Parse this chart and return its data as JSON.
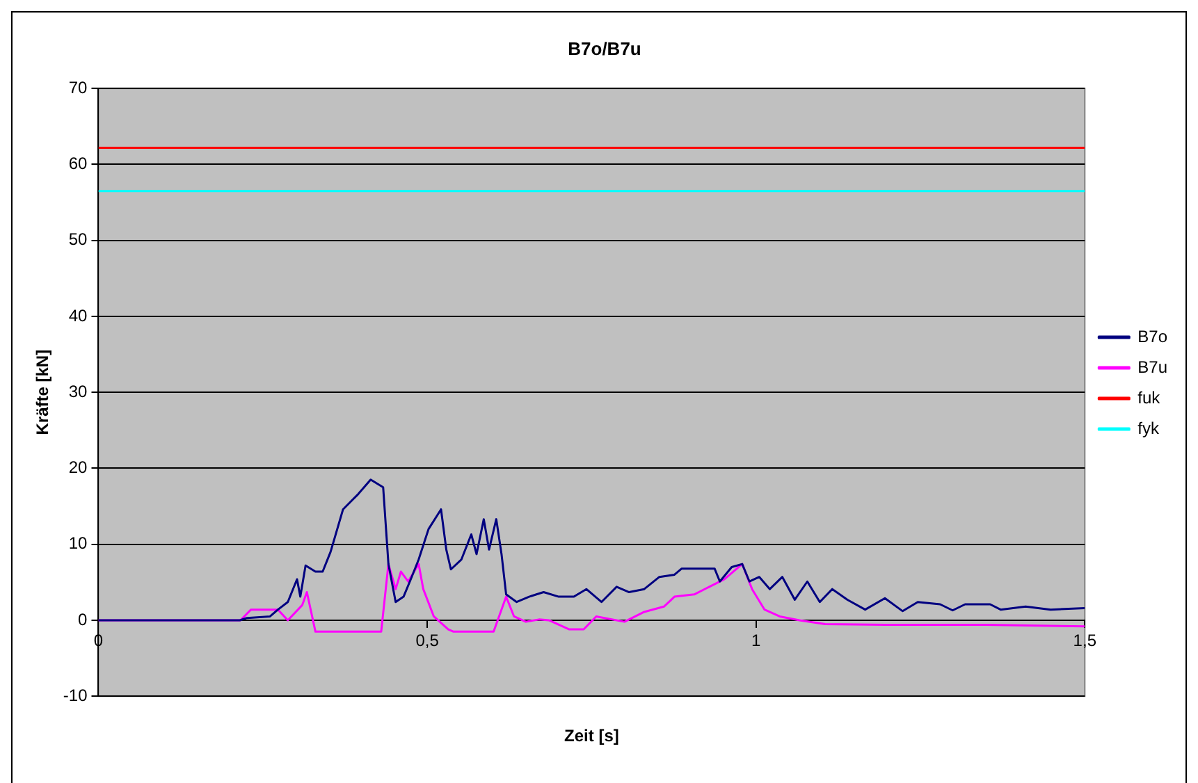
{
  "chart_data": {
    "type": "line",
    "title": "B7o/B7u",
    "xlabel": "Zeit [s]",
    "ylabel": "Kräfte [kN]",
    "xlim": [
      0,
      1.5
    ],
    "xticks": [
      0,
      {
        "value": 0.5,
        "label": "0,5"
      },
      1,
      {
        "value": 1.5,
        "label": "1,5"
      }
    ],
    "ylim": [
      -10,
      70
    ],
    "yticks": [
      -10,
      0,
      10,
      20,
      30,
      40,
      50,
      60,
      70
    ],
    "grid": "y",
    "legend": "right",
    "marker": "none",
    "line_style": "solid",
    "series": [
      {
        "name": "B7o",
        "color": "#000080",
        "x": [
          0,
          0.215,
          0.226,
          0.261,
          0.273,
          0.288,
          0.302,
          0.307,
          0.315,
          0.33,
          0.341,
          0.353,
          0.372,
          0.395,
          0.414,
          0.433,
          0.441,
          0.452,
          0.464,
          0.475,
          0.487,
          0.502,
          0.521,
          0.529,
          0.536,
          0.552,
          0.567,
          0.575,
          0.586,
          0.594,
          0.605,
          0.613,
          0.62,
          0.636,
          0.655,
          0.677,
          0.7,
          0.723,
          0.742,
          0.765,
          0.788,
          0.807,
          0.83,
          0.853,
          0.876,
          0.887,
          0.937,
          0.945,
          0.963,
          0.979,
          0.99,
          1.005,
          1.021,
          1.04,
          1.059,
          1.078,
          1.097,
          1.116,
          1.139,
          1.166,
          1.196,
          1.223,
          1.246,
          1.28,
          1.299,
          1.318,
          1.356,
          1.372,
          1.41,
          1.448,
          1.5
        ],
        "values": [
          0,
          0,
          0.3,
          0.5,
          1.4,
          2.4,
          5.4,
          3.1,
          7.2,
          6.4,
          6.4,
          9.0,
          14.6,
          16.6,
          18.5,
          17.5,
          7.4,
          2.4,
          3.1,
          5.4,
          8.0,
          12.0,
          14.6,
          9.3,
          6.7,
          8.0,
          11.3,
          8.7,
          13.3,
          9.3,
          13.3,
          8.7,
          3.4,
          2.4,
          3.1,
          3.7,
          3.1,
          3.1,
          4.1,
          2.4,
          4.4,
          3.7,
          4.1,
          5.7,
          6.0,
          6.8,
          6.8,
          5.1,
          7.0,
          7.4,
          5.1,
          5.7,
          4.1,
          5.7,
          2.7,
          5.1,
          2.4,
          4.1,
          2.7,
          1.4,
          2.9,
          1.2,
          2.4,
          2.1,
          1.3,
          2.1,
          2.1,
          1.4,
          1.8,
          1.4,
          1.6
        ]
      },
      {
        "name": "B7u",
        "color": "#ff00ff",
        "x": [
          0,
          0.216,
          0.232,
          0.273,
          0.288,
          0.31,
          0.317,
          0.33,
          0.43,
          0.441,
          0.452,
          0.46,
          0.471,
          0.487,
          0.494,
          0.51,
          0.532,
          0.54,
          0.601,
          0.62,
          0.632,
          0.65,
          0.67,
          0.685,
          0.716,
          0.738,
          0.757,
          0.8,
          0.83,
          0.86,
          0.876,
          0.906,
          0.929,
          0.952,
          0.979,
          0.994,
          1.013,
          1.036,
          1.066,
          1.105,
          1.2,
          1.35,
          1.5
        ],
        "values": [
          0,
          0,
          1.4,
          1.4,
          0.0,
          2.0,
          3.7,
          -1.5,
          -1.5,
          7.4,
          4.1,
          6.4,
          5.1,
          7.4,
          4.1,
          0.5,
          -1.2,
          -1.5,
          -1.5,
          3.1,
          0.5,
          -0.2,
          0.1,
          0.0,
          -1.2,
          -1.2,
          0.5,
          -0.2,
          1.1,
          1.8,
          3.1,
          3.4,
          4.4,
          5.4,
          7.4,
          4.1,
          1.4,
          0.5,
          0.0,
          -0.5,
          -0.6,
          -0.6,
          -0.8
        ]
      },
      {
        "name": "fuk",
        "color": "#ff0000",
        "x": [
          0,
          1.5
        ],
        "values": [
          62.2,
          62.2
        ]
      },
      {
        "name": "fyk",
        "color": "#00ffff",
        "x": [
          0,
          1.5
        ],
        "values": [
          56.5,
          56.5
        ]
      }
    ]
  }
}
